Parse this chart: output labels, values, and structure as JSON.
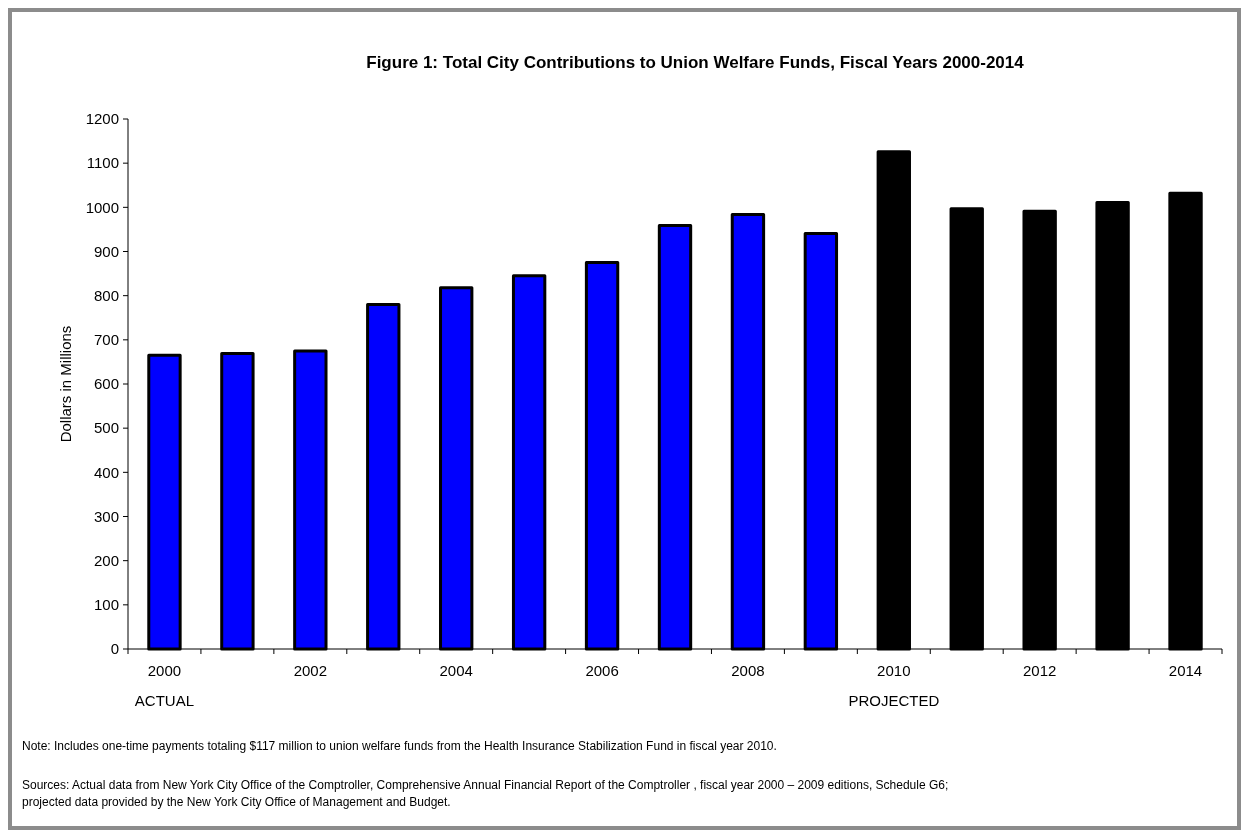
{
  "chart_data": {
    "type": "bar",
    "title": "Figure 1: Total City Contributions to Union Welfare Funds, Fiscal Years 2000-2014",
    "ylabel": "Dollars in Millions",
    "categories": [
      "2000",
      null,
      "2002",
      null,
      "2004",
      null,
      "2006",
      null,
      "2008",
      null,
      "2010",
      null,
      "2012",
      null,
      "2014"
    ],
    "values": [
      665,
      669,
      675,
      780,
      818,
      845,
      875,
      959,
      984,
      941,
      1126,
      997,
      991,
      1011,
      1032
    ],
    "colors": [
      "#0000ff",
      "#0000ff",
      "#0000ff",
      "#0000ff",
      "#0000ff",
      "#0000ff",
      "#0000ff",
      "#0000ff",
      "#0000ff",
      "#0000ff",
      "#000000",
      "#000000",
      "#000000",
      "#000000",
      "#000000"
    ],
    "ylim": [
      0,
      1200
    ],
    "yticks": [
      0,
      100,
      200,
      300,
      400,
      500,
      600,
      700,
      800,
      900,
      1000,
      1100,
      1200
    ],
    "grid": false,
    "annotations": [
      "ACTUAL",
      "PROJECTED",
      "Note: Includes one-time payments totaling $117 million to union welfare funds from the Health Insurance Stabilization Fund in fiscal year 2010.",
      "Sources: Actual data from New York City Office of the Comptroller, Comprehensive Annual Financial Report of the Comptroller , fiscal year 2000 – 2009 editions, Schedule G6; projected data provided by the New York City Office of Management and Budget."
    ]
  }
}
